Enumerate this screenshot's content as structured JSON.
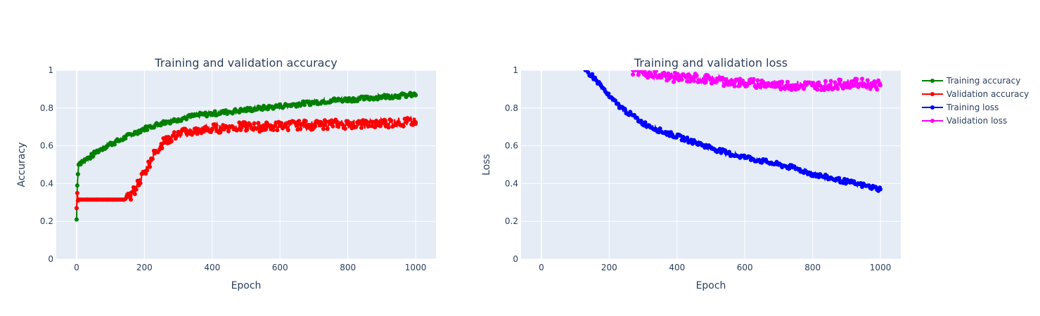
{
  "chart_data": [
    {
      "type": "line",
      "title": "Training and validation accuracy",
      "xlabel": "Epoch",
      "ylabel": "Accuracy",
      "xlim": [
        -60,
        1060
      ],
      "ylim": [
        0,
        1
      ],
      "x_ticks": [
        "0",
        "200",
        "400",
        "600",
        "800",
        "1000"
      ],
      "y_ticks": [
        "0",
        "0.2",
        "0.4",
        "0.6",
        "0.8",
        "1"
      ],
      "grid": true,
      "markers": true,
      "series": [
        {
          "name": "Training accuracy",
          "color": "#008000",
          "x": [
            0,
            2,
            4,
            6,
            10,
            20,
            40,
            60,
            80,
            100,
            130,
            160,
            200,
            250,
            300,
            350,
            400,
            450,
            500,
            550,
            600,
            650,
            700,
            750,
            800,
            850,
            900,
            950,
            1000
          ],
          "y": [
            0.21,
            0.39,
            0.45,
            0.5,
            0.51,
            0.52,
            0.54,
            0.57,
            0.59,
            0.61,
            0.63,
            0.66,
            0.69,
            0.72,
            0.74,
            0.76,
            0.77,
            0.78,
            0.79,
            0.8,
            0.81,
            0.82,
            0.83,
            0.84,
            0.845,
            0.85,
            0.86,
            0.865,
            0.87
          ]
        },
        {
          "name": "Validation accuracy",
          "color": "#ff0000",
          "x": [
            0,
            2,
            4,
            6,
            10,
            30,
            60,
            90,
            120,
            140,
            155,
            170,
            185,
            200,
            215,
            230,
            250,
            275,
            300,
            350,
            400,
            450,
            500,
            550,
            600,
            650,
            700,
            750,
            800,
            850,
            900,
            950,
            1000
          ],
          "y": [
            0.27,
            0.35,
            0.31,
            0.315,
            0.315,
            0.315,
            0.315,
            0.315,
            0.315,
            0.315,
            0.33,
            0.36,
            0.41,
            0.46,
            0.51,
            0.56,
            0.61,
            0.64,
            0.66,
            0.68,
            0.69,
            0.7,
            0.7,
            0.7,
            0.705,
            0.71,
            0.71,
            0.715,
            0.715,
            0.715,
            0.72,
            0.725,
            0.725
          ]
        }
      ]
    },
    {
      "type": "line",
      "title": "Training and validation loss",
      "xlabel": "Epoch",
      "ylabel": "Loss",
      "xlim": [
        -60,
        1060
      ],
      "ylim": [
        0,
        1
      ],
      "x_ticks": [
        "0",
        "200",
        "400",
        "600",
        "800",
        "1000"
      ],
      "y_ticks": [
        "0",
        "0.2",
        "0.4",
        "0.6",
        "0.8",
        "1"
      ],
      "grid": true,
      "markers": true,
      "series": [
        {
          "name": "Training loss",
          "color": "#0000ff",
          "x": [
            130,
            150,
            175,
            200,
            230,
            260,
            300,
            350,
            400,
            450,
            500,
            550,
            600,
            650,
            700,
            750,
            800,
            850,
            900,
            950,
            1000
          ],
          "y": [
            1.0,
            0.97,
            0.92,
            0.86,
            0.81,
            0.77,
            0.72,
            0.68,
            0.65,
            0.62,
            0.59,
            0.56,
            0.54,
            0.52,
            0.5,
            0.48,
            0.45,
            0.43,
            0.41,
            0.39,
            0.37
          ]
        },
        {
          "name": "Validation loss",
          "color": "#ff00ff",
          "x": [
            270,
            300,
            350,
            400,
            450,
            500,
            550,
            600,
            650,
            700,
            750,
            800,
            850,
            900,
            950,
            1000
          ],
          "y": [
            1.0,
            0.99,
            0.97,
            0.96,
            0.96,
            0.95,
            0.94,
            0.93,
            0.93,
            0.92,
            0.92,
            0.92,
            0.92,
            0.93,
            0.93,
            0.92
          ]
        }
      ]
    }
  ],
  "legend": {
    "position": "top-right",
    "items": [
      {
        "label": "Training accuracy",
        "color": "#008000"
      },
      {
        "label": "Validation accuracy",
        "color": "#ff0000"
      },
      {
        "label": "Training loss",
        "color": "#0000ff"
      },
      {
        "label": "Validation loss",
        "color": "#ff00ff"
      }
    ]
  }
}
